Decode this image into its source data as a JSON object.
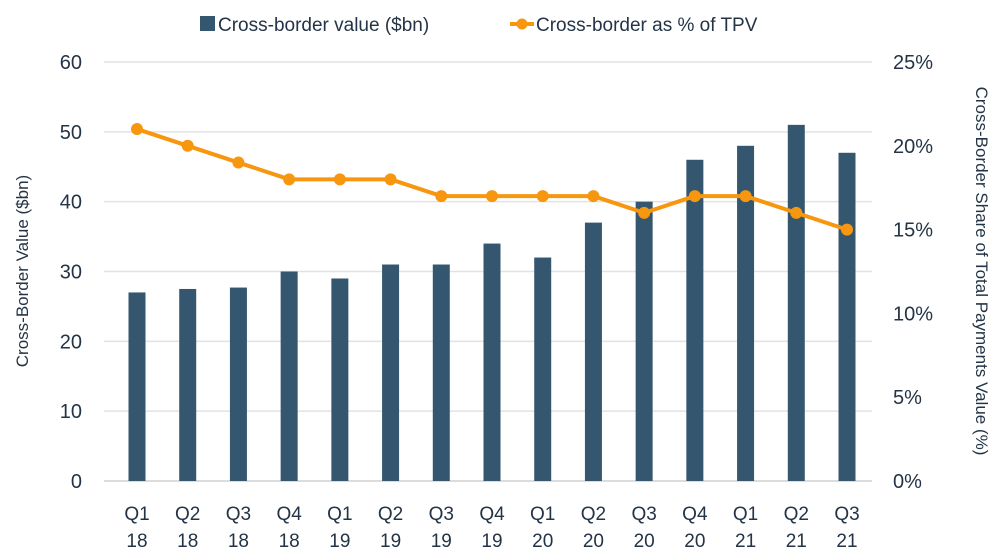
{
  "chart_data": {
    "type": "bar+line",
    "categories": [
      "Q1 18",
      "Q2 18",
      "Q3 18",
      "Q4 18",
      "Q1 19",
      "Q2 19",
      "Q3 19",
      "Q4 19",
      "Q1 20",
      "Q2 20",
      "Q3 20",
      "Q4 20",
      "Q1 21",
      "Q2 21",
      "Q3 21"
    ],
    "category_lines": [
      [
        "Q1",
        "18"
      ],
      [
        "Q2",
        "18"
      ],
      [
        "Q3",
        "18"
      ],
      [
        "Q4",
        "18"
      ],
      [
        "Q1",
        "19"
      ],
      [
        "Q2",
        "19"
      ],
      [
        "Q3",
        "19"
      ],
      [
        "Q4",
        "19"
      ],
      [
        "Q1",
        "20"
      ],
      [
        "Q2",
        "20"
      ],
      [
        "Q3",
        "20"
      ],
      [
        "Q4",
        "20"
      ],
      [
        "Q1",
        "21"
      ],
      [
        "Q2",
        "21"
      ],
      [
        "Q3",
        "21"
      ]
    ],
    "series": [
      {
        "name": "Cross-border value ($bn)",
        "type": "bar",
        "axis": "left",
        "color": "#34566f",
        "values": [
          27,
          27.5,
          27.7,
          30,
          29,
          31,
          31,
          34,
          32,
          37,
          40,
          46,
          48,
          51,
          47
        ]
      },
      {
        "name": "Cross-border as % of TPV",
        "type": "line",
        "axis": "right",
        "color": "#f7960f",
        "values": [
          21,
          20,
          19,
          18,
          18,
          18,
          17,
          17,
          17,
          17,
          16,
          17,
          17,
          16,
          15
        ]
      }
    ],
    "ylabel": "Cross-Border Value ($bn)",
    "y2label": "Cross-Border Share of Total Payments Value (%)",
    "ylim": [
      0,
      60
    ],
    "yticks": [
      "0",
      "10",
      "20",
      "30",
      "40",
      "50",
      "60"
    ],
    "y2lim": [
      0,
      25
    ],
    "y2ticks": [
      "0%",
      "5%",
      "10%",
      "15%",
      "20%",
      "25%"
    ],
    "grid": true,
    "legend_placement": "top"
  }
}
